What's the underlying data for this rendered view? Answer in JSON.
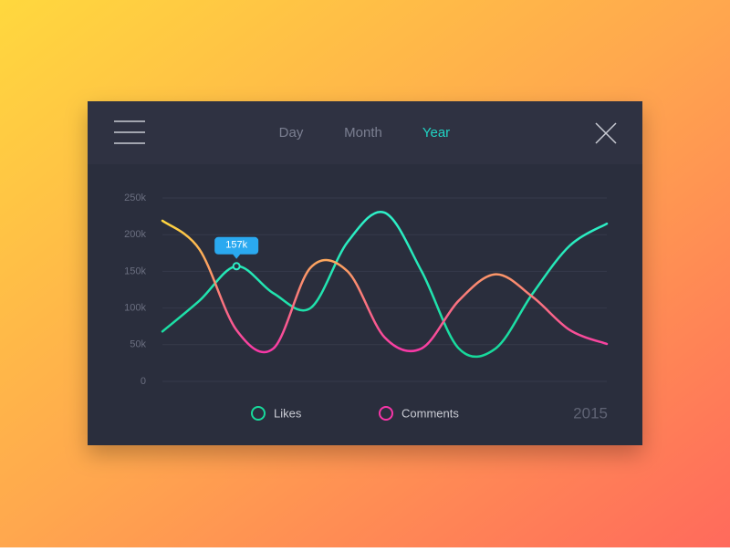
{
  "nav": {
    "tabs": [
      "Day",
      "Month",
      "Year"
    ],
    "active": 2
  },
  "chart_data": {
    "type": "line",
    "categories": [
      null,
      null,
      null,
      null,
      null,
      null,
      null,
      null,
      null,
      null,
      null,
      null,
      null
    ],
    "series": [
      {
        "name": "Likes",
        "colors": [
          "#2ef0c8",
          "#17d99b"
        ],
        "values": [
          68000,
          110000,
          157000,
          120000,
          100000,
          190000,
          230000,
          150000,
          45000,
          45000,
          120000,
          185000,
          215000
        ],
        "value_labels": [
          null,
          null,
          "157k",
          null,
          null,
          null,
          null,
          null,
          null,
          null,
          null,
          null,
          null
        ]
      },
      {
        "name": "Comments",
        "colors": [
          "#ffdc3a",
          "#f735a8"
        ],
        "values": [
          219000,
          180000,
          70000,
          45000,
          155000,
          150000,
          60000,
          45000,
          110000,
          146000,
          115000,
          70000,
          51000
        ]
      }
    ],
    "ylim": [
      0,
      250000
    ],
    "yticks": [
      0,
      {
        "value": 50000,
        "label": "50k"
      },
      {
        "value": 100000,
        "label": "100k"
      },
      {
        "value": 150000,
        "label": "150k"
      },
      {
        "value": 200000,
        "label": "200k"
      },
      {
        "value": 250000,
        "label": "250k"
      }
    ],
    "grid": true,
    "period": "2015"
  }
}
